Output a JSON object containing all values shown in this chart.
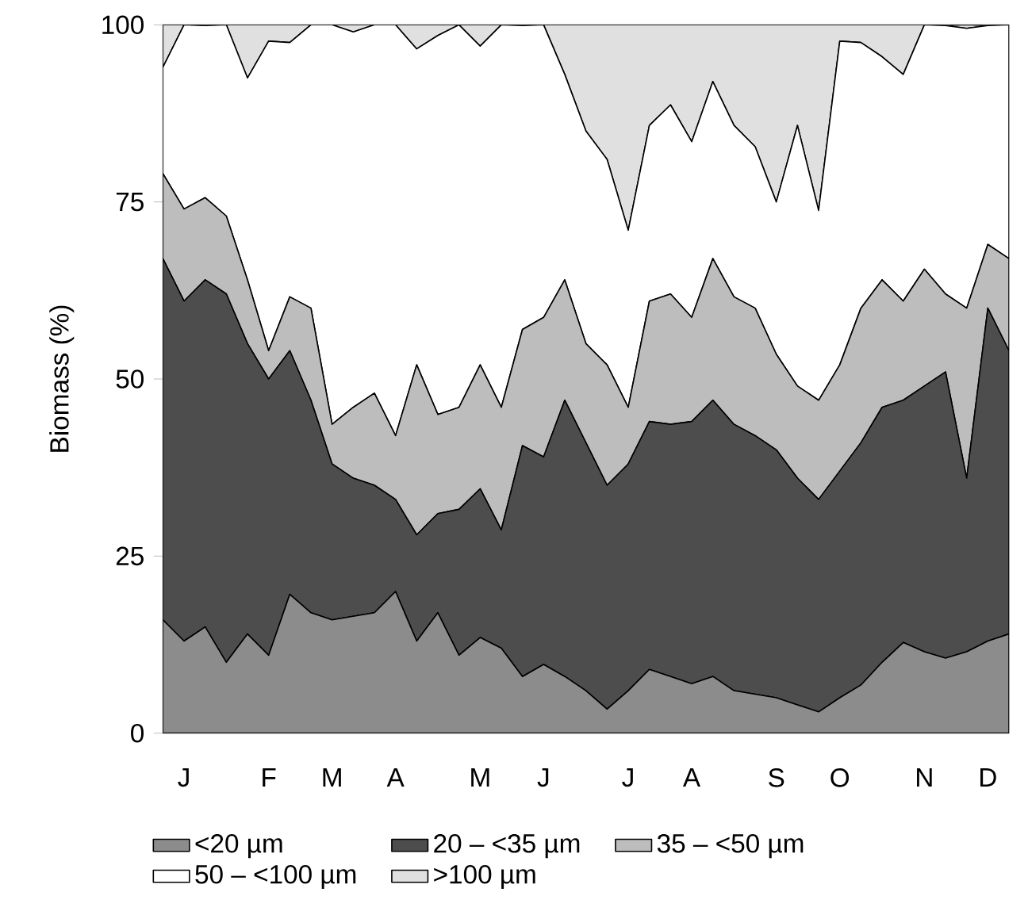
{
  "chart_data": {
    "type": "area",
    "stacked": true,
    "ylabel": "Biomass (%)",
    "legend": "bottom",
    "grid": false,
    "categories": [
      null,
      "J",
      null,
      null,
      null,
      "F",
      null,
      null,
      "M",
      null,
      null,
      "A",
      null,
      null,
      null,
      "M",
      null,
      null,
      "J",
      null,
      null,
      null,
      "J",
      null,
      null,
      "A",
      null,
      null,
      null,
      "S",
      null,
      null,
      "O",
      null,
      null,
      null,
      "N",
      null,
      null,
      "D",
      null
    ],
    "ylim": [
      0,
      100
    ],
    "yticks": [
      0,
      25,
      50,
      75,
      100
    ],
    "series": [
      {
        "name": "<20 µm",
        "color": "#8c8c8c",
        "values": [
          16,
          13,
          15,
          10,
          14,
          11,
          19.6,
          17,
          16,
          16.5,
          17,
          20,
          13,
          17,
          11,
          13.5,
          12,
          8,
          9.7,
          8,
          6,
          3.4,
          6,
          9,
          8,
          7,
          8,
          6,
          5.5,
          5,
          4,
          3,
          5,
          6.8,
          10,
          12.8,
          11.5,
          10.6,
          11.5,
          13,
          14
        ]
      },
      {
        "name": "20 – <35 µm",
        "color": "#4d4d4d",
        "values": [
          51,
          48,
          49,
          52,
          41,
          39,
          34.4,
          30,
          22,
          19.5,
          18,
          13,
          15,
          14,
          20.6,
          21,
          16.7,
          32.6,
          29.3,
          39,
          35,
          31.6,
          32,
          35,
          35.6,
          37,
          39,
          37.6,
          36.5,
          35,
          32,
          30,
          32,
          34.2,
          36,
          34.2,
          37.5,
          40.4,
          24.5,
          47,
          40
        ]
      },
      {
        "name": "35 – <50 µm",
        "color": "#bdbdbd",
        "values": [
          12,
          13,
          11.6,
          11,
          9,
          4,
          7.6,
          13,
          5.6,
          10,
          13,
          9,
          24,
          14,
          14.4,
          17.5,
          17.3,
          16.4,
          19.7,
          17,
          14,
          17,
          8,
          17,
          18.4,
          14.7,
          20,
          18,
          18,
          13.5,
          13,
          14,
          15,
          19,
          18,
          14,
          16.5,
          11,
          24,
          9,
          13
        ]
      },
      {
        "name": "50 – <100 µm",
        "color": "#ffffff",
        "values": [
          15,
          26,
          24.3,
          27,
          28.5,
          43.7,
          35.9,
          40,
          56.4,
          53,
          52,
          58,
          44.6,
          53.5,
          54,
          45,
          54,
          42.9,
          41.3,
          29,
          30,
          29,
          25,
          24.8,
          26.7,
          24.8,
          25,
          24.2,
          22.8,
          21.5,
          36.8,
          26.8,
          45.7,
          37.5,
          31.5,
          32,
          34.5,
          37.9,
          39.5,
          30.9,
          33
        ]
      },
      {
        "name": ">100 µm",
        "color": "#e0e0e0",
        "values": [
          6,
          0,
          0,
          0,
          7.5,
          2.3,
          2.5,
          0,
          0,
          1,
          0,
          0,
          3.4,
          1.5,
          0,
          3,
          0,
          0,
          0,
          7,
          15,
          19,
          29,
          14.2,
          11.3,
          16.5,
          8,
          14.2,
          17.2,
          25,
          14.2,
          26.2,
          2.3,
          2.5,
          4.5,
          7,
          0,
          0,
          0.5,
          0,
          0
        ]
      }
    ]
  }
}
